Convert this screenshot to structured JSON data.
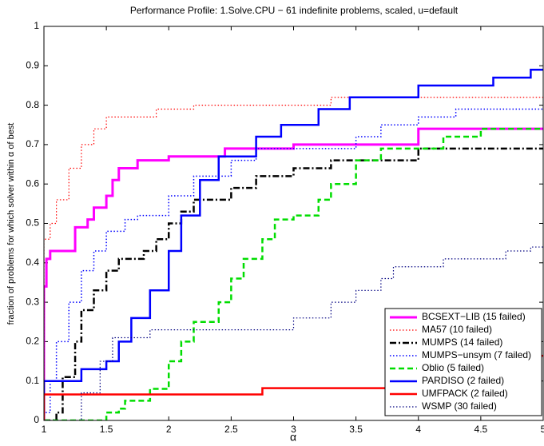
{
  "chart_data": {
    "type": "step",
    "title": "Performance Profile: 1.Solve.CPU − 61 indefinite problems, scaled, u=default",
    "x_label": "α",
    "y_label": "fraction of problems for which solver within α of best",
    "xlim": [
      1,
      5
    ],
    "ylim": [
      0,
      1
    ],
    "xticks": [
      1,
      1.5,
      2,
      2.5,
      3,
      3.5,
      4,
      4.5,
      5
    ],
    "yticks": [
      0,
      0.1,
      0.2,
      0.3,
      0.4,
      0.5,
      0.6,
      0.7,
      0.8,
      0.9,
      1
    ],
    "legend": "lower right",
    "grid": false,
    "series": [
      {
        "name": "BCSEXT−LIB (15 failed)",
        "color": "#ff00ff",
        "linestyle": "solid",
        "linewidth": 3,
        "x": [
          1,
          1.02,
          1.05,
          1.2,
          1.25,
          1.35,
          1.4,
          1.5,
          1.55,
          1.6,
          1.75,
          2.0,
          2.45,
          3.0,
          4.0,
          5
        ],
        "values": [
          0.34,
          0.41,
          0.43,
          0.43,
          0.49,
          0.51,
          0.54,
          0.57,
          0.61,
          0.64,
          0.66,
          0.67,
          0.69,
          0.7,
          0.74,
          0.74
        ]
      },
      {
        "name": "MA57 (10 failed)",
        "color": "#ff0000",
        "linestyle": "dotted",
        "linewidth": 1.2,
        "x": [
          1,
          1.05,
          1.1,
          1.2,
          1.3,
          1.4,
          1.5,
          1.9,
          2.2,
          3.0,
          3.3,
          5
        ],
        "values": [
          0.46,
          0.5,
          0.56,
          0.64,
          0.7,
          0.74,
          0.77,
          0.79,
          0.8,
          0.8,
          0.82,
          0.82
        ]
      },
      {
        "name": "MUMPS (14 failed)",
        "color": "#000000",
        "linestyle": "dashdot",
        "linewidth": 2.5,
        "x": [
          1,
          1.1,
          1.15,
          1.25,
          1.3,
          1.4,
          1.5,
          1.6,
          1.8,
          1.9,
          2.0,
          2.1,
          2.2,
          2.5,
          2.7,
          3.0,
          3.3,
          4.0,
          5
        ],
        "values": [
          0,
          0.02,
          0.11,
          0.2,
          0.28,
          0.33,
          0.38,
          0.41,
          0.43,
          0.46,
          0.5,
          0.53,
          0.56,
          0.59,
          0.62,
          0.64,
          0.66,
          0.69,
          0.69
        ]
      },
      {
        "name": "MUMPS−unsym (7 failed)",
        "color": "#0000ff",
        "linestyle": "dotted",
        "linewidth": 1.5,
        "x": [
          1,
          1.05,
          1.1,
          1.2,
          1.3,
          1.4,
          1.5,
          1.65,
          1.75,
          2.0,
          2.2,
          2.5,
          2.7,
          3.0,
          3.5,
          3.7,
          4.0,
          4.3,
          5
        ],
        "values": [
          0.02,
          0.1,
          0.2,
          0.3,
          0.38,
          0.43,
          0.48,
          0.51,
          0.52,
          0.57,
          0.62,
          0.66,
          0.69,
          0.69,
          0.72,
          0.75,
          0.77,
          0.79,
          0.79
        ]
      },
      {
        "name": "Oblio (5 failed)",
        "color": "#00dd00",
        "linestyle": "dashed",
        "linewidth": 2.5,
        "x": [
          1,
          1.5,
          1.6,
          1.65,
          1.85,
          2.0,
          2.1,
          2.2,
          2.4,
          2.5,
          2.6,
          2.75,
          2.85,
          3.0,
          3.2,
          3.3,
          3.5,
          3.7,
          4.2,
          4.5,
          5
        ],
        "values": [
          0,
          0.02,
          0.03,
          0.05,
          0.08,
          0.15,
          0.2,
          0.25,
          0.3,
          0.36,
          0.41,
          0.46,
          0.51,
          0.52,
          0.56,
          0.6,
          0.66,
          0.69,
          0.72,
          0.74,
          0.74
        ]
      },
      {
        "name": "PARDISO (2 failed)",
        "color": "#0000ff",
        "linestyle": "solid",
        "linewidth": 2.5,
        "x": [
          1,
          1.15,
          1.3,
          1.5,
          1.6,
          1.7,
          1.85,
          2.0,
          2.1,
          2.25,
          2.4,
          2.7,
          2.9,
          3.2,
          3.45,
          4.0,
          4.6,
          4.9,
          5
        ],
        "values": [
          0.1,
          0.1,
          0.13,
          0.15,
          0.2,
          0.26,
          0.33,
          0.43,
          0.52,
          0.61,
          0.67,
          0.72,
          0.75,
          0.79,
          0.82,
          0.85,
          0.87,
          0.89,
          0.89
        ]
      },
      {
        "name": "UMFPACK (2 failed)",
        "color": "#ff0000",
        "linestyle": "solid",
        "linewidth": 2.5,
        "x": [
          1,
          2.75,
          4.95,
          5
        ],
        "values": [
          0.066,
          0.082,
          0.164,
          0.164
        ]
      },
      {
        "name": "WSMP (30 failed)",
        "color": "#000080",
        "linestyle": "dotted",
        "linewidth": 1.2,
        "x": [
          1,
          1.3,
          1.45,
          1.55,
          1.85,
          2.9,
          3.0,
          3.3,
          3.5,
          3.7,
          3.8,
          4.2,
          4.7,
          4.9,
          5
        ],
        "values": [
          0,
          0.07,
          0.15,
          0.21,
          0.23,
          0.23,
          0.26,
          0.3,
          0.33,
          0.36,
          0.39,
          0.41,
          0.43,
          0.44,
          0.44
        ]
      }
    ]
  }
}
